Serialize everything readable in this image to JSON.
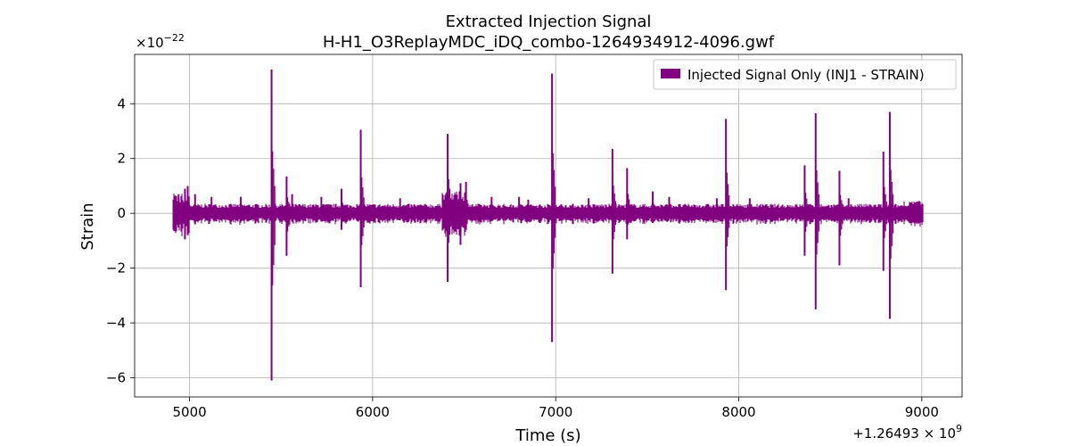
{
  "chart_data": {
    "type": "line",
    "title_line1": "Extracted Injection Signal",
    "title_line2": "H-H1_O3ReplayMDC_iDQ_combo-1264934912-4096.gwf",
    "xlabel": "Time (s)",
    "ylabel": "Strain",
    "x_offset_label": "+1.26493 × 10",
    "x_offset_exp": "9",
    "y_multiplier_label": "×10",
    "y_multiplier_exp": "−22",
    "xlim": [
      4700,
      9220
    ],
    "ylim": [
      -6.7,
      5.8
    ],
    "xticks": [
      5000,
      6000,
      7000,
      8000,
      9000
    ],
    "xtick_labels": [
      "5000",
      "6000",
      "7000",
      "8000",
      "9000"
    ],
    "yticks": [
      -6,
      -4,
      -2,
      0,
      2,
      4
    ],
    "ytick_labels": [
      "−6",
      "−4",
      "−2",
      "0",
      "2",
      "4"
    ],
    "grid": true,
    "legend_position": "top-right",
    "series": [
      {
        "name": "Injected Signal Only (INJ1 - STRAIN)",
        "color": "#800080",
        "x_start": 4912,
        "x_end": 9008,
        "baseline_amplitude": 0.15,
        "bursts": [
          {
            "x": 4912,
            "hi": 0.5,
            "lo": -0.6
          },
          {
            "x": 4940,
            "hi": 0.7,
            "lo": -0.5
          },
          {
            "x": 4975,
            "hi": 0.9,
            "lo": -0.95
          },
          {
            "x": 4990,
            "hi": 1.0,
            "lo": -0.8
          },
          {
            "x": 5030,
            "hi": 0.7,
            "lo": -0.4
          },
          {
            "x": 5120,
            "hi": 0.6,
            "lo": -0.2
          },
          {
            "x": 5280,
            "hi": 0.6,
            "lo": -0.2
          },
          {
            "x": 5448,
            "hi": 5.25,
            "lo": -6.1
          },
          {
            "x": 5530,
            "hi": 1.35,
            "lo": -1.55
          },
          {
            "x": 5560,
            "hi": 0.7,
            "lo": -0.2
          },
          {
            "x": 5720,
            "hi": 0.6,
            "lo": -0.3
          },
          {
            "x": 5830,
            "hi": 0.9,
            "lo": -0.6
          },
          {
            "x": 5935,
            "hi": 3.05,
            "lo": -2.7
          },
          {
            "x": 6150,
            "hi": 0.55,
            "lo": -0.25
          },
          {
            "x": 6410,
            "hi": 2.9,
            "lo": -2.5
          },
          {
            "x": 6480,
            "hi": 1.1,
            "lo": -1.15
          },
          {
            "x": 6510,
            "hi": 1.15,
            "lo": -0.6
          },
          {
            "x": 6650,
            "hi": 0.6,
            "lo": -0.25
          },
          {
            "x": 6800,
            "hi": 0.6,
            "lo": -0.2
          },
          {
            "x": 6850,
            "hi": 0.5,
            "lo": -0.3
          },
          {
            "x": 6980,
            "hi": 5.1,
            "lo": -4.7
          },
          {
            "x": 7180,
            "hi": 0.55,
            "lo": -0.2
          },
          {
            "x": 7310,
            "hi": 2.35,
            "lo": -2.2
          },
          {
            "x": 7390,
            "hi": 1.65,
            "lo": -0.95
          },
          {
            "x": 7530,
            "hi": 0.8,
            "lo": -0.35
          },
          {
            "x": 7620,
            "hi": 0.6,
            "lo": -0.2
          },
          {
            "x": 7880,
            "hi": 0.55,
            "lo": -0.2
          },
          {
            "x": 7930,
            "hi": 3.45,
            "lo": -2.8
          },
          {
            "x": 8060,
            "hi": 0.55,
            "lo": -0.2
          },
          {
            "x": 8360,
            "hi": 1.75,
            "lo": -1.55
          },
          {
            "x": 8420,
            "hi": 3.65,
            "lo": -3.5
          },
          {
            "x": 8550,
            "hi": 1.55,
            "lo": -1.9
          },
          {
            "x": 8600,
            "hi": 0.55,
            "lo": -0.2
          },
          {
            "x": 8790,
            "hi": 2.25,
            "lo": -2.1
          },
          {
            "x": 8825,
            "hi": 3.7,
            "lo": -3.85
          },
          {
            "x": 8985,
            "hi": 0.45,
            "lo": -0.35
          }
        ]
      }
    ]
  }
}
